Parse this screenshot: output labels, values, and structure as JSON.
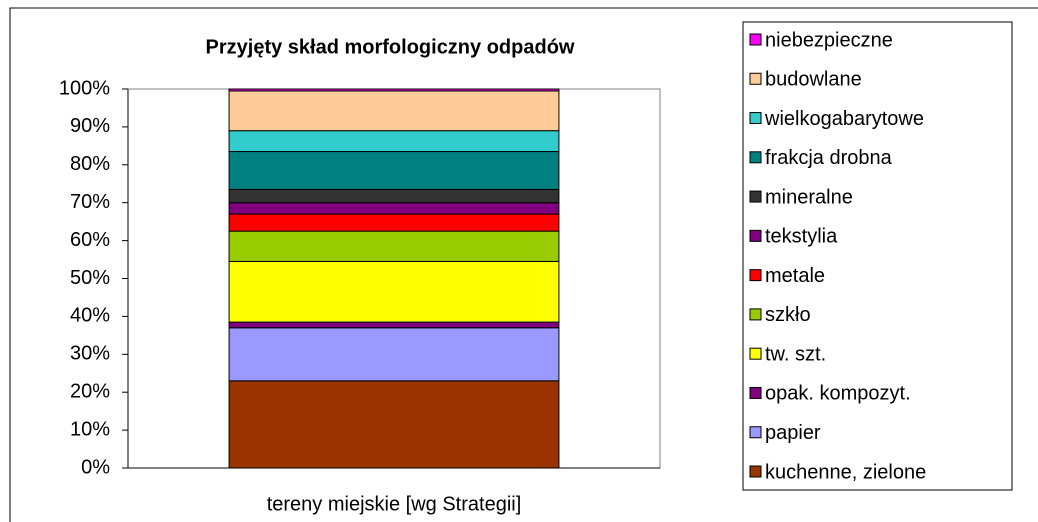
{
  "chart_data": {
    "type": "stacked_bar",
    "title": "Przyjęty skład morfologiczny odpadów",
    "categories": [
      "tereny miejskie [wg Strategii]"
    ],
    "series": [
      {
        "name": "kuchenne, zielone",
        "color": "#993300",
        "values": [
          23
        ]
      },
      {
        "name": "papier",
        "color": "#9999ff",
        "values": [
          14
        ]
      },
      {
        "name": "opak. kompozyt.",
        "color": "#800080",
        "values": [
          1.5
        ]
      },
      {
        "name": "tw. szt.",
        "color": "#ffff00",
        "values": [
          16
        ]
      },
      {
        "name": "szkło",
        "color": "#99cc00",
        "values": [
          8
        ]
      },
      {
        "name": "metale",
        "color": "#ff0000",
        "values": [
          4.5
        ]
      },
      {
        "name": "tekstylia",
        "color": "#800080",
        "values": [
          3
        ]
      },
      {
        "name": "mineralne",
        "color": "#333333",
        "values": [
          3.5
        ]
      },
      {
        "name": "frakcja drobna",
        "color": "#008080",
        "values": [
          10
        ]
      },
      {
        "name": "wielkogabarytowe",
        "color": "#33cccc",
        "values": [
          5.5
        ]
      },
      {
        "name": "budowlane",
        "color": "#ffcc99",
        "values": [
          10.5
        ]
      },
      {
        "name": "niebezpieczne",
        "color": "#ff00ff",
        "values": [
          0.5
        ]
      }
    ],
    "ylim": [
      0,
      100
    ],
    "yticks": [
      {
        "value": 0,
        "label": "0%"
      },
      {
        "value": 10,
        "label": "10%"
      },
      {
        "value": 20,
        "label": "20%"
      },
      {
        "value": 30,
        "label": "30%"
      },
      {
        "value": 40,
        "label": "40%"
      },
      {
        "value": 50,
        "label": "50%"
      },
      {
        "value": 60,
        "label": "60%"
      },
      {
        "value": 70,
        "label": "70%"
      },
      {
        "value": 80,
        "label": "80%"
      },
      {
        "value": 90,
        "label": "90%"
      },
      {
        "value": 100,
        "label": "100%"
      }
    ],
    "grid": false,
    "legend": "right"
  }
}
